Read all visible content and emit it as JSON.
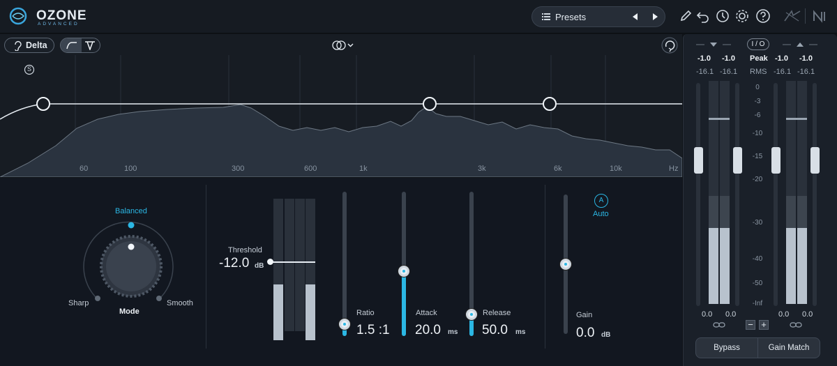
{
  "header": {
    "logo_text": "OZONE",
    "logo_sub": "ADVANCED",
    "presets_label": "Presets",
    "icons": [
      "pencil-icon",
      "undo-icon",
      "history-icon",
      "gear-icon",
      "help-icon",
      "ni-logo-icon"
    ]
  },
  "eq": {
    "delta_label": "Delta",
    "solo_label": "S",
    "freq_labels": [
      "60",
      "100",
      "300",
      "600",
      "1k",
      "3k",
      "6k",
      "10k",
      "Hz"
    ]
  },
  "threshold": {
    "label": "Threshold",
    "value": "-12.0",
    "unit": "dB"
  },
  "mode": {
    "label": "Mode",
    "options": {
      "top": "Balanced",
      "left": "Sharp",
      "right": "Smooth"
    },
    "selected": "Balanced"
  },
  "sliders": [
    {
      "label": "Ratio",
      "value": "1.5 :1",
      "unit": "",
      "level": 0.08
    },
    {
      "label": "Attack",
      "value": "20.0",
      "unit": "ms",
      "level": 0.45
    },
    {
      "label": "Release",
      "value": "50.0",
      "unit": "ms",
      "level": 0.15
    }
  ],
  "gain": {
    "label": "Gain",
    "value": "0.0",
    "unit": "dB",
    "auto_label": "Auto",
    "auto_icon": "A",
    "level": 0.5
  },
  "meters": {
    "io_label": "I / O",
    "peak_label": "Peak",
    "rms_label": "RMS",
    "in_peak": [
      "-1.0",
      "-1.0"
    ],
    "in_rms": [
      "-16.1",
      "-16.1"
    ],
    "out_peak": [
      "-1.0",
      "-1.0"
    ],
    "out_rms": [
      "-16.1",
      "-16.1"
    ],
    "scale": [
      "0",
      "-3",
      "-6",
      "-10",
      "-15",
      "-20",
      "-30",
      "-40",
      "-50",
      "-Inf"
    ],
    "in_gain": [
      "0.0",
      "0.0"
    ],
    "out_gain": [
      "0.0",
      "0.0"
    ],
    "bypass_label": "Bypass",
    "gain_match_label": "Gain Match"
  },
  "colors": {
    "accent": "#2bb7e4",
    "background": "#0f1318",
    "panel": "#1a2029"
  }
}
